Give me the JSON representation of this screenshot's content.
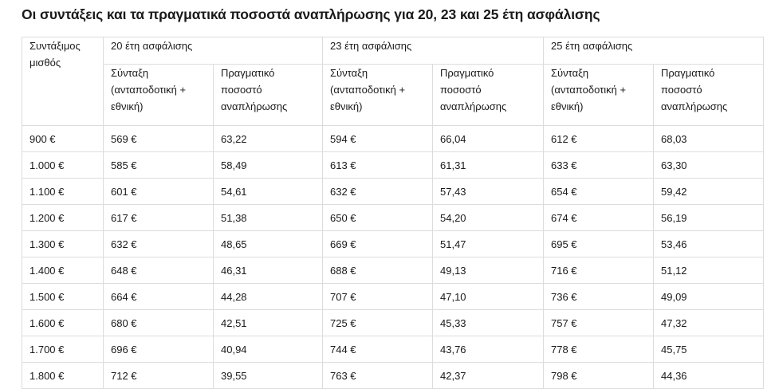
{
  "title": "Οι συντάξεις και τα πραγματικά ποσοστά αναπλήρωσης για 20, 23 και 25 έτη ασφάλισης",
  "table": {
    "salary_header": "Συντάξιμος μισθός",
    "groups": [
      "20 έτη ασφάλισης",
      "23 έτη ασφάλισης",
      "25 έτη ασφάλισης"
    ],
    "sub_headers": {
      "pension": "Σύνταξη (ανταποδοτική + εθνική)",
      "rate": "Πραγματικό ποσοστό αναπλήρωσης"
    },
    "rows": [
      [
        "900 €",
        "569 €",
        "63,22",
        "594 €",
        "66,04",
        "612 €",
        "68,03"
      ],
      [
        "1.000 €",
        "585 €",
        "58,49",
        "613 €",
        "61,31",
        "633 €",
        "63,30"
      ],
      [
        "1.100 €",
        "601 €",
        "54,61",
        "632 €",
        "57,43",
        "654 €",
        "59,42"
      ],
      [
        "1.200 €",
        "617 €",
        "51,38",
        "650 €",
        "54,20",
        "674 €",
        "56,19"
      ],
      [
        "1.300 €",
        "632 €",
        "48,65",
        "669 €",
        "51,47",
        "695 €",
        "53,46"
      ],
      [
        "1.400 €",
        "648 €",
        "46,31",
        "688 €",
        "49,13",
        "716 €",
        "51,12"
      ],
      [
        "1.500 €",
        "664 €",
        "44,28",
        "707 €",
        "47,10",
        "736 €",
        "49,09"
      ],
      [
        "1.600 €",
        "680 €",
        "42,51",
        "725 €",
        "45,33",
        "757 €",
        "47,32"
      ],
      [
        "1.700 €",
        "696 €",
        "40,94",
        "744 €",
        "43,76",
        "778 €",
        "45,75"
      ],
      [
        "1.800 €",
        "712 €",
        "39,55",
        "763 €",
        "42,37",
        "798 €",
        "44,36"
      ]
    ]
  }
}
